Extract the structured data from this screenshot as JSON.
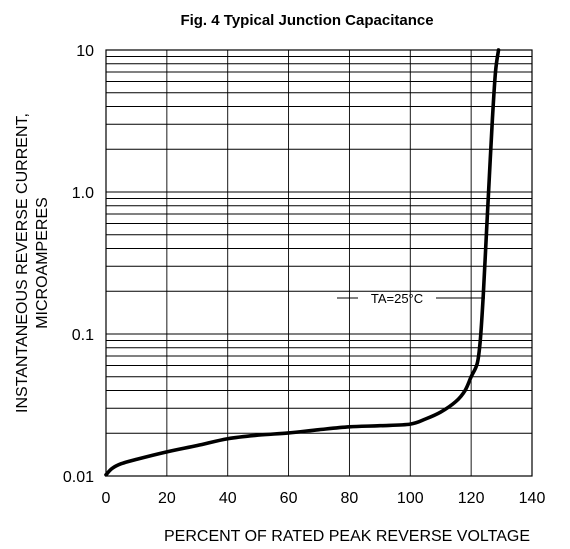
{
  "chart_data": {
    "type": "line",
    "title": "Fig. 4   Typical Junction Capacitance",
    "xlabel": "PERCENT OF RATED PEAK REVERSE VOLTAGE",
    "ylabel": [
      "INSTANTANEOUS REVERSE  CURRENT,",
      "MICROAMPERES"
    ],
    "xlim": [
      0,
      140
    ],
    "ylim": [
      0.01,
      10
    ],
    "yscale": "log",
    "grid": true,
    "x_ticks": [
      0,
      20,
      40,
      60,
      80,
      100,
      120,
      140
    ],
    "x_tick_labels": [
      "0",
      "20",
      "40",
      "60",
      "80",
      "100",
      "120",
      "140"
    ],
    "y_ticks": [
      0.01,
      0.1,
      1.0,
      10
    ],
    "y_tick_labels": [
      "0.01",
      "0.1",
      "1.0",
      "10"
    ],
    "annotation": "TA=25°C",
    "series": [
      {
        "x": [
          0,
          2,
          5,
          10,
          20,
          30,
          40,
          50,
          60,
          70,
          80,
          90,
          100,
          105,
          110,
          115,
          118,
          120,
          122,
          123,
          124,
          125,
          126,
          127,
          128,
          129
        ],
        "y": [
          0.0102,
          0.0113,
          0.0122,
          0.0131,
          0.0148,
          0.0164,
          0.0183,
          0.0194,
          0.0201,
          0.0212,
          0.0222,
          0.0226,
          0.0232,
          0.0252,
          0.0282,
          0.0335,
          0.04,
          0.05,
          0.062,
          0.09,
          0.19,
          0.5,
          1.3,
          3.3,
          7.0,
          10.0
        ]
      }
    ]
  }
}
